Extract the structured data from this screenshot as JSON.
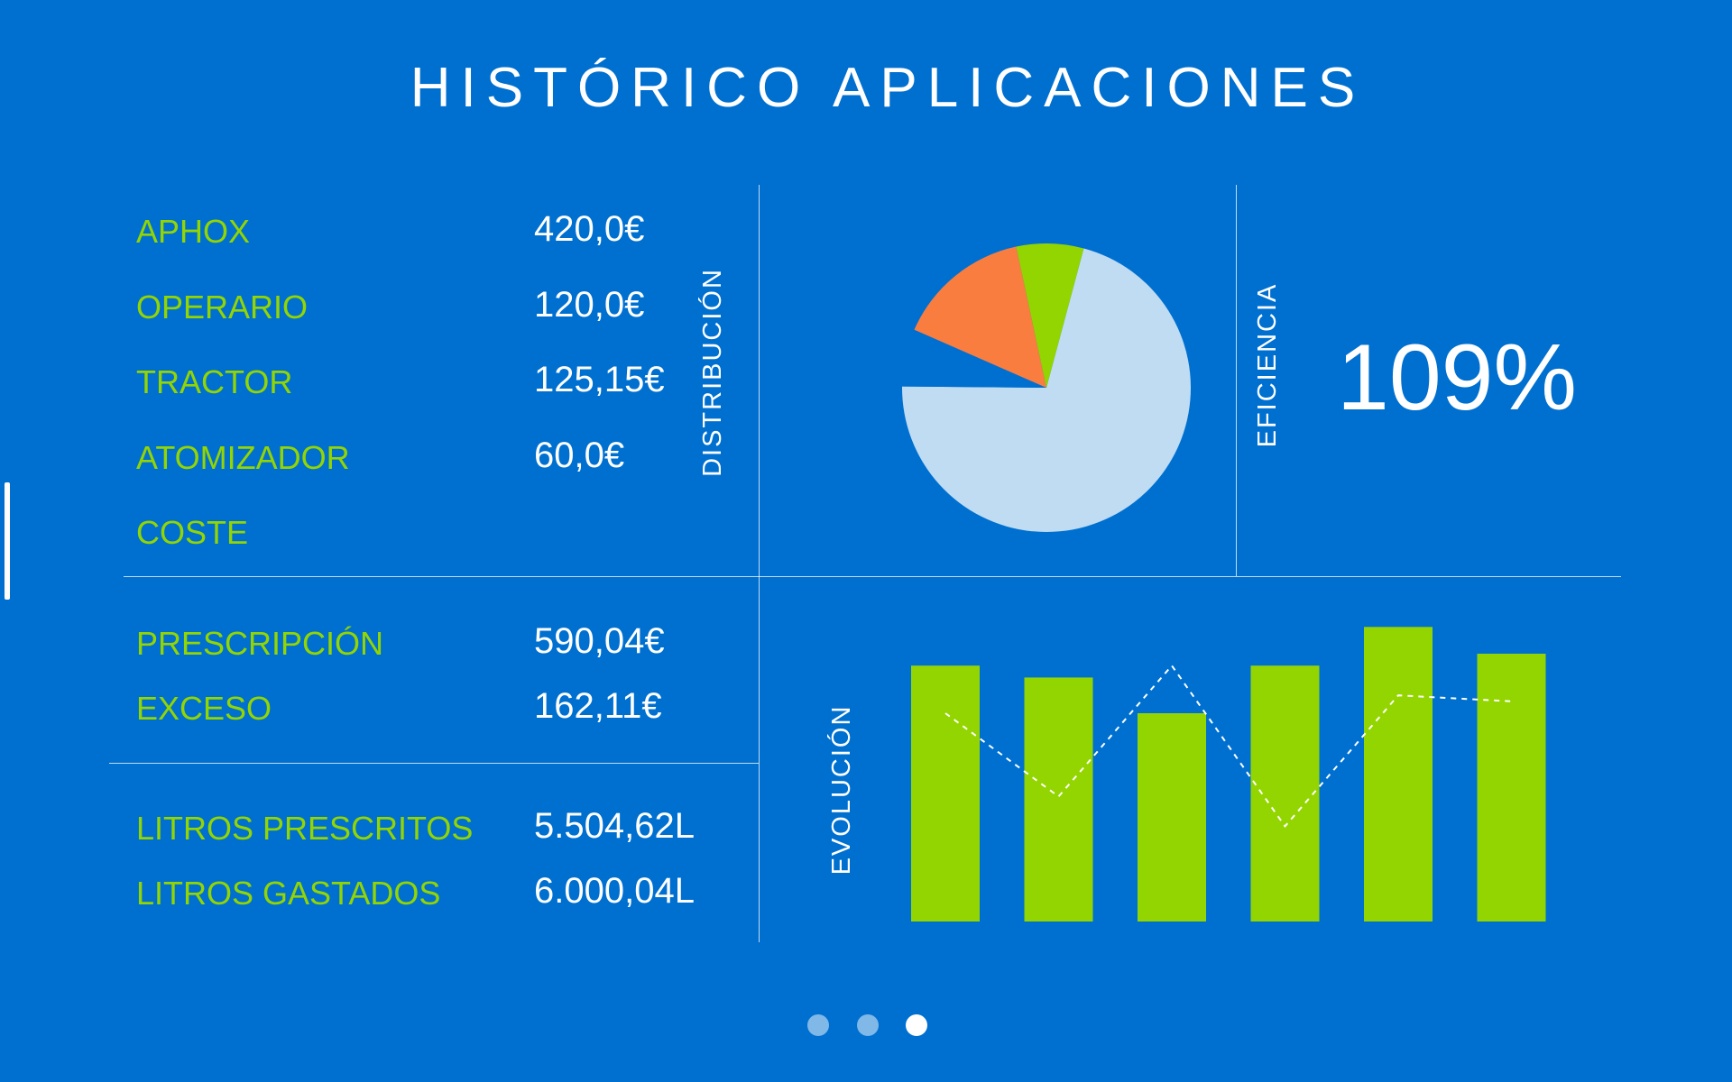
{
  "title": "HISTÓRICO APLICACIONES",
  "costs": [
    {
      "label": "APHOX",
      "value": "420,0€"
    },
    {
      "label": "OPERARIO",
      "value": "120,0€"
    },
    {
      "label": "TRACTOR",
      "value": "125,15€"
    },
    {
      "label": "ATOMIZADOR",
      "value": "60,0€"
    },
    {
      "label": "COSTE",
      "value": ""
    }
  ],
  "prescription": [
    {
      "label": "PRESCRIPCIÓN",
      "value": "590,04€"
    },
    {
      "label": "EXCESO",
      "value": "162,11€"
    }
  ],
  "liters": [
    {
      "label": "LITROS PRESCRITOS",
      "value": "5.504,62L"
    },
    {
      "label": "LITROS GASTADOS",
      "value": "6.000,04L"
    }
  ],
  "distribution": {
    "label": "DISTRIBUCIÓN",
    "slices": [
      {
        "value": 66,
        "color": "#c0dcf2"
      },
      {
        "value": 6,
        "color": "#0070d0"
      },
      {
        "value": 14,
        "color": "#fa7d40"
      },
      {
        "value": 7,
        "color": "#93d500"
      }
    ]
  },
  "efficiency": {
    "label": "EFICIENCIA",
    "value": "109%"
  },
  "evolution": {
    "label": "EVOLUCIÓN",
    "chart_data": {
      "type": "bar",
      "bar_values": [
        86,
        82,
        70,
        86,
        99,
        90
      ],
      "line_values": [
        70,
        42,
        86,
        32,
        76,
        74
      ],
      "ylim": [
        0,
        100
      ],
      "bar_color": "#93d500",
      "line_color": "#ffffff"
    }
  },
  "pagination": {
    "count": 3,
    "active": 2
  },
  "colors": {
    "background": "#0070d0",
    "accent": "#93d500"
  }
}
